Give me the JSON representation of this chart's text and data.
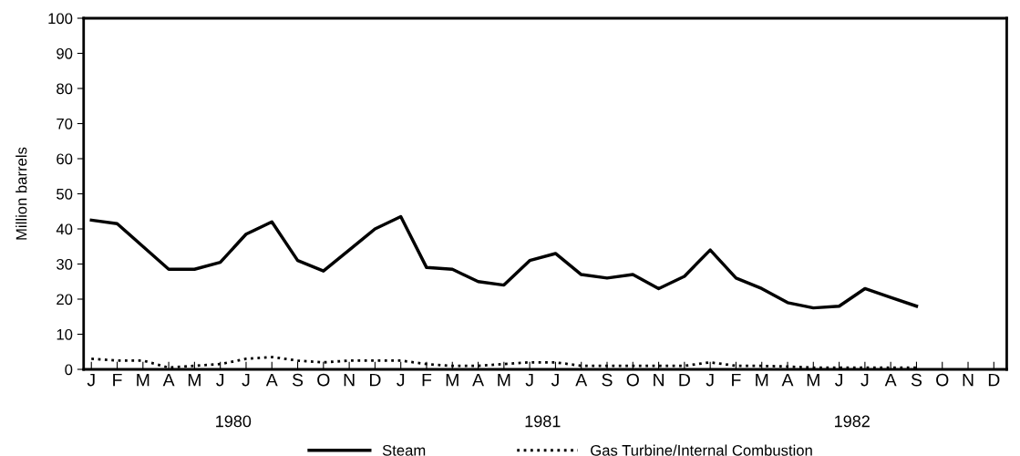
{
  "chart_data": {
    "type": "line",
    "ylabel": "Million barrels",
    "categories": [
      "J",
      "F",
      "M",
      "A",
      "M",
      "J",
      "J",
      "A",
      "S",
      "O",
      "N",
      "D",
      "J",
      "F",
      "M",
      "A",
      "M",
      "J",
      "J",
      "A",
      "S",
      "O",
      "N",
      "D",
      "J",
      "F",
      "M",
      "A",
      "M",
      "J",
      "J",
      "A",
      "S",
      "O",
      "N",
      "D"
    ],
    "series": [
      {
        "name": "Steam",
        "color": "#000000",
        "line_style": "solid",
        "values": [
          42.5,
          41.5,
          35,
          28.5,
          28.5,
          30.5,
          38.5,
          42,
          31,
          28,
          34,
          40,
          43.5,
          29,
          28.5,
          25,
          24,
          31,
          33,
          27,
          26,
          27,
          23,
          26.5,
          34,
          26,
          23,
          19,
          17.5,
          18,
          23,
          20.5,
          18,
          null,
          null,
          null
        ]
      },
      {
        "name": "Gas Turbine/Internal Combustion",
        "color": "#000000",
        "line_style": "dotted",
        "values": [
          3,
          2.5,
          2.5,
          0.5,
          1,
          1.5,
          3,
          3.5,
          2.5,
          2,
          2.5,
          2.5,
          2.5,
          1.5,
          1,
          1,
          1.5,
          2,
          2,
          1,
          1,
          1,
          1,
          1,
          2,
          1,
          1,
          0.8,
          0.5,
          0.5,
          0.5,
          0.5,
          0.5,
          null,
          null,
          null
        ]
      }
    ],
    "ylim": [
      0,
      100
    ],
    "yticks": [
      0,
      10,
      20,
      30,
      40,
      50,
      60,
      70,
      80,
      90,
      100
    ],
    "annotations": [
      "1980",
      "1981",
      "1982"
    ],
    "grid": false,
    "legend": "bottom",
    "marker": "none"
  }
}
